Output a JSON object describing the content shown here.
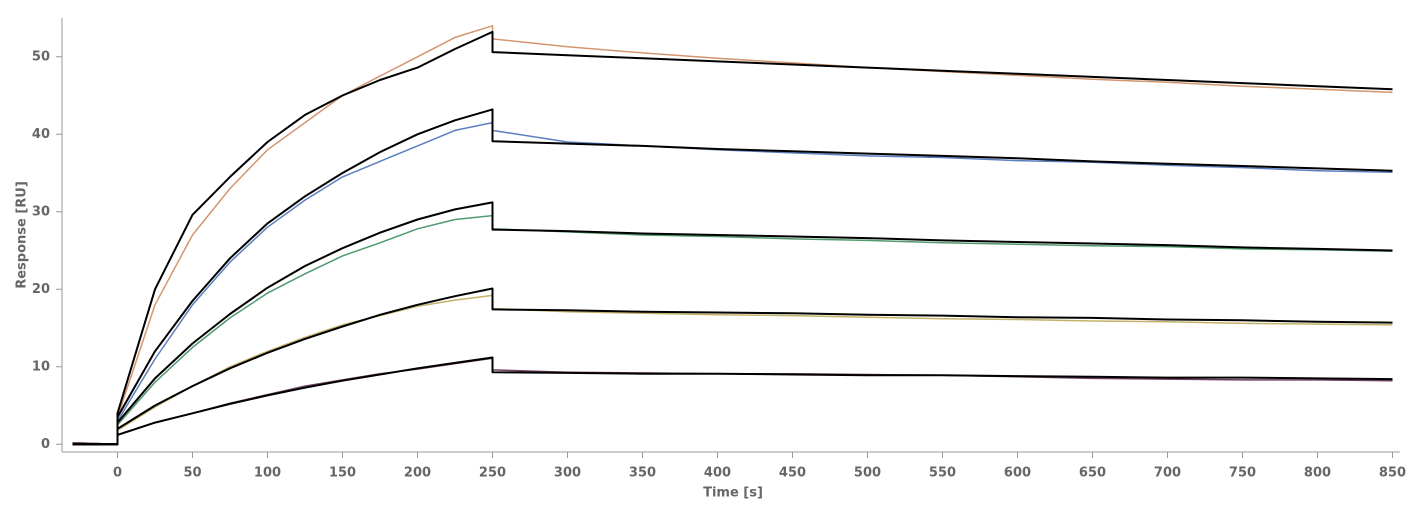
{
  "chart_data": {
    "type": "line",
    "x_label": "Time [s]",
    "y_label": "Response [RU]",
    "x": [
      -30,
      0,
      0,
      25,
      50,
      75,
      100,
      125,
      150,
      175,
      200,
      225,
      250,
      250,
      300,
      350,
      400,
      450,
      500,
      550,
      600,
      650,
      700,
      750,
      800,
      850
    ],
    "series": [
      {
        "color": "#d4956f",
        "width": 1.5,
        "values": [
          0.2,
          0,
          3.5,
          18,
          27,
          33,
          38,
          41.5,
          45,
          47.5,
          50,
          52.5,
          54,
          52.3,
          51.3,
          50.5,
          49.8,
          49.2,
          48.6,
          48.1,
          47.6,
          47.1,
          46.7,
          46.2,
          45.8,
          45.4
        ]
      },
      {
        "color": "#5a7fbf",
        "width": 1.5,
        "values": [
          0.2,
          0,
          3,
          11,
          18,
          23.5,
          28,
          31.5,
          34.5,
          36.5,
          38.5,
          40.5,
          41.5,
          40.5,
          39,
          38.5,
          38,
          37.6,
          37.2,
          37,
          36.6,
          36.4,
          36,
          35.7,
          35.3,
          35.1
        ]
      },
      {
        "color": "#4f9a6e",
        "width": 1.5,
        "values": [
          0.2,
          0,
          2.5,
          8,
          12.5,
          16.3,
          19.5,
          22,
          24.3,
          26,
          27.8,
          29,
          29.5,
          27.8,
          27.4,
          27,
          26.8,
          26.5,
          26.3,
          26,
          25.8,
          25.6,
          25.5,
          25.2,
          25.1,
          24.9
        ]
      },
      {
        "color": "#c4b26a",
        "width": 1.5,
        "values": [
          0.2,
          0,
          1.8,
          4.8,
          7.5,
          10,
          12,
          13.8,
          15.4,
          16.6,
          17.8,
          18.6,
          19.2,
          17.5,
          17.1,
          16.9,
          16.7,
          16.6,
          16.4,
          16.2,
          16.1,
          15.9,
          15.8,
          15.6,
          15.5,
          15.4
        ]
      },
      {
        "color": "#6b3f5f",
        "width": 1.5,
        "values": [
          0.2,
          0,
          1.2,
          2.8,
          4,
          5.3,
          6.4,
          7.5,
          8.3,
          9.1,
          9.7,
          10.4,
          11.1,
          9.6,
          9.3,
          9.2,
          9.1,
          9.1,
          9,
          8.9,
          8.7,
          8.5,
          8.4,
          8.3,
          8.3,
          8.2
        ]
      },
      {
        "color": "#000000",
        "width": 2,
        "values": [
          0,
          0,
          4,
          20,
          29.6,
          34.5,
          39,
          42.5,
          45,
          47,
          48.6,
          51,
          53.2,
          50.6,
          50.2,
          49.8,
          49.4,
          49,
          48.6,
          48.2,
          47.8,
          47.4,
          47,
          46.6,
          46.2,
          45.8
        ]
      },
      {
        "color": "#000000",
        "width": 2,
        "values": [
          0,
          0,
          3.5,
          12,
          18.5,
          24,
          28.5,
          32,
          35,
          37.7,
          40,
          41.8,
          43.2,
          39.1,
          38.8,
          38.5,
          38.1,
          37.8,
          37.5,
          37.2,
          36.9,
          36.5,
          36.2,
          35.9,
          35.6,
          35.3
        ]
      },
      {
        "color": "#000000",
        "width": 2,
        "values": [
          0,
          0,
          2.8,
          8.5,
          13,
          16.8,
          20.2,
          23,
          25.3,
          27.3,
          29,
          30.3,
          31.2,
          27.7,
          27.5,
          27.2,
          27,
          26.8,
          26.6,
          26.3,
          26.1,
          25.9,
          25.7,
          25.4,
          25.2,
          25
        ]
      },
      {
        "color": "#000000",
        "width": 2,
        "values": [
          0,
          0,
          2,
          5,
          7.5,
          9.8,
          11.8,
          13.6,
          15.2,
          16.7,
          18,
          19.1,
          20.1,
          17.4,
          17.3,
          17.1,
          17,
          16.9,
          16.7,
          16.6,
          16.4,
          16.3,
          16.1,
          16,
          15.8,
          15.7
        ]
      },
      {
        "color": "#000000",
        "width": 2,
        "values": [
          0,
          0,
          1.2,
          2.8,
          4,
          5.2,
          6.3,
          7.3,
          8.2,
          9,
          9.8,
          10.5,
          11.2,
          9.3,
          9.2,
          9.1,
          9.1,
          9,
          8.9,
          8.9,
          8.8,
          8.7,
          8.6,
          8.6,
          8.5,
          8.4
        ]
      }
    ],
    "xlim": [
      -37,
      855
    ],
    "ylim": [
      -1,
      55
    ],
    "xticks": [
      0,
      50,
      100,
      150,
      200,
      250,
      300,
      350,
      400,
      450,
      500,
      550,
      600,
      650,
      700,
      750,
      800,
      850
    ],
    "yticks": [
      0,
      10,
      20,
      30,
      40,
      50
    ]
  }
}
